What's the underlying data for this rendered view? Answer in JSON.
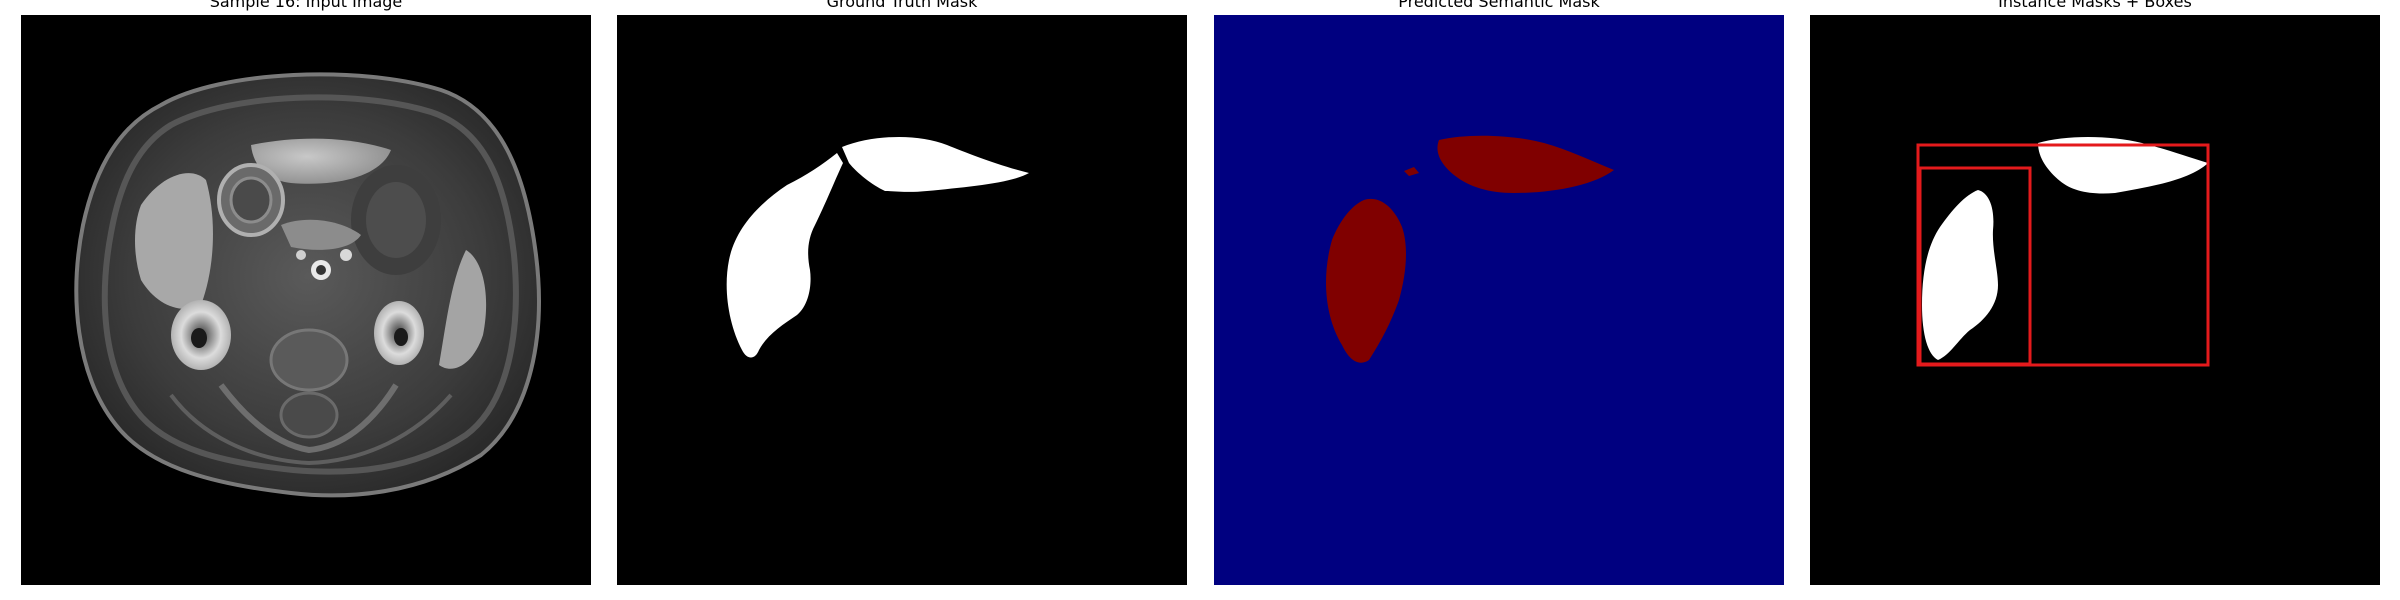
{
  "panels": [
    {
      "title": "Sample 16: Input Image"
    },
    {
      "title": "Ground Truth Mask"
    },
    {
      "title": "Predicted Semantic Mask"
    },
    {
      "title": "Instance Masks + Boxes"
    }
  ],
  "colors": {
    "background": "#000000",
    "mask_foreground": "#ffffff",
    "semantic_background": "#000080",
    "semantic_foreground": "#800000",
    "box": "#e41a1c"
  }
}
